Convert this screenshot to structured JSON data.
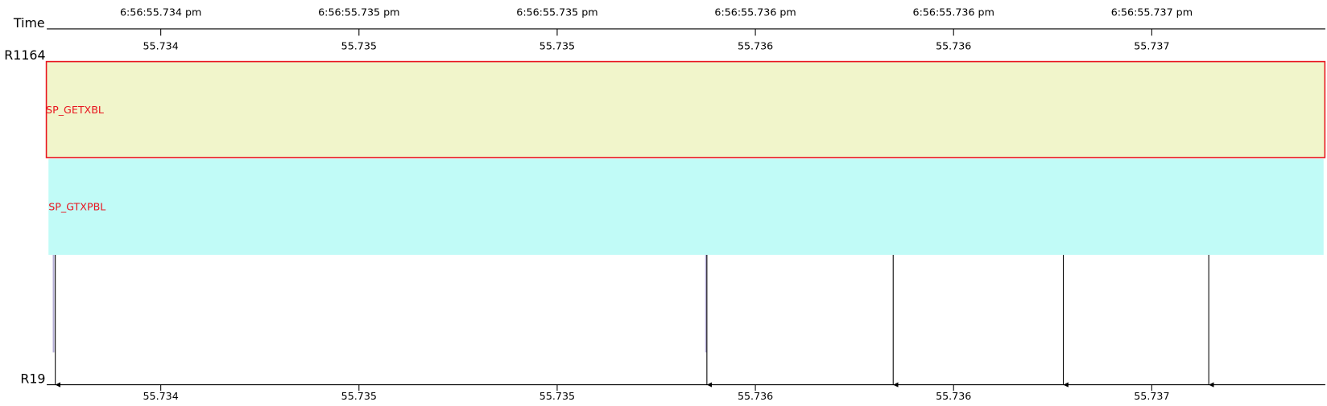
{
  "axis_label": "Time",
  "top_lane": "R1164",
  "bottom_lane": "R19",
  "top_ticks": [
    {
      "time": "6:56:55.734 pm",
      "seconds": "55.734"
    },
    {
      "time": "6:56:55.735 pm",
      "seconds": "55.735"
    },
    {
      "time": "6:56:55.735 pm",
      "seconds": "55.735"
    },
    {
      "time": "6:56:55.736 pm",
      "seconds": "55.736"
    },
    {
      "time": "6:56:55.736 pm",
      "seconds": "55.736"
    },
    {
      "time": "6:56:55.737 pm",
      "seconds": "55.737"
    }
  ],
  "bottom_ticks": [
    "55.734",
    "55.735",
    "55.735",
    "55.736",
    "55.736",
    "55.737"
  ],
  "blocks": [
    {
      "label": "SP_GETXBL"
    },
    {
      "label": "SP_GTXPBL"
    }
  ]
}
